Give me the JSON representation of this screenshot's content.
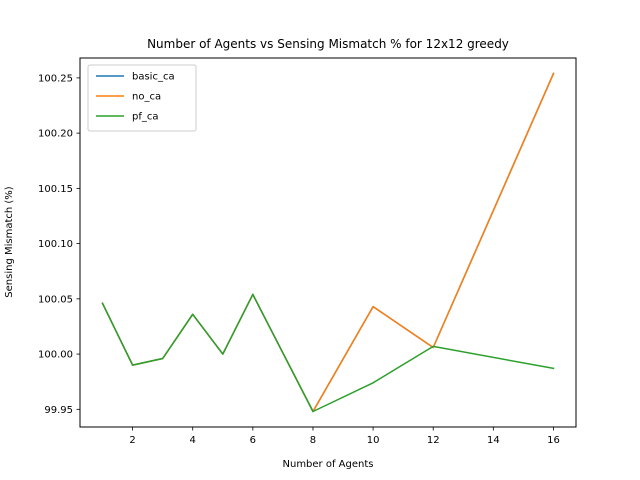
{
  "chart_data": {
    "type": "line",
    "title": "Number of Agents vs Sensing Mismatch % for 12x12 greedy",
    "xlabel": "Number of Agents",
    "ylabel": "Sensing Mismatch (%)",
    "xlim": [
      0.25,
      16.75
    ],
    "ylim": [
      99.934,
      100.268
    ],
    "xticks": [
      2,
      4,
      6,
      8,
      10,
      12,
      14,
      16
    ],
    "yticks": [
      99.95,
      100.0,
      100.05,
      100.1,
      100.15,
      100.2,
      100.25
    ],
    "ytick_labels": [
      "99.95",
      "100.00",
      "100.05",
      "100.10",
      "100.15",
      "100.20",
      "100.25"
    ],
    "grid": false,
    "legend_position": "top-left",
    "x": [
      1,
      2,
      3,
      4,
      5,
      6,
      8,
      10,
      12,
      16
    ],
    "series": [
      {
        "name": "basic_ca",
        "color": "#1f77b4",
        "values": [
          100.046,
          99.99,
          99.996,
          100.036,
          100.0,
          100.054,
          99.948,
          100.043,
          100.006,
          100.254
        ]
      },
      {
        "name": "no_ca",
        "color": "#ff7f0e",
        "values": [
          100.046,
          99.99,
          99.996,
          100.036,
          100.0,
          100.054,
          99.948,
          100.043,
          100.006,
          100.254
        ]
      },
      {
        "name": "pf_ca",
        "color": "#2ca02c",
        "values": [
          100.046,
          99.99,
          99.996,
          100.036,
          100.0,
          100.054,
          99.948,
          99.974,
          100.007,
          99.987
        ]
      }
    ]
  }
}
